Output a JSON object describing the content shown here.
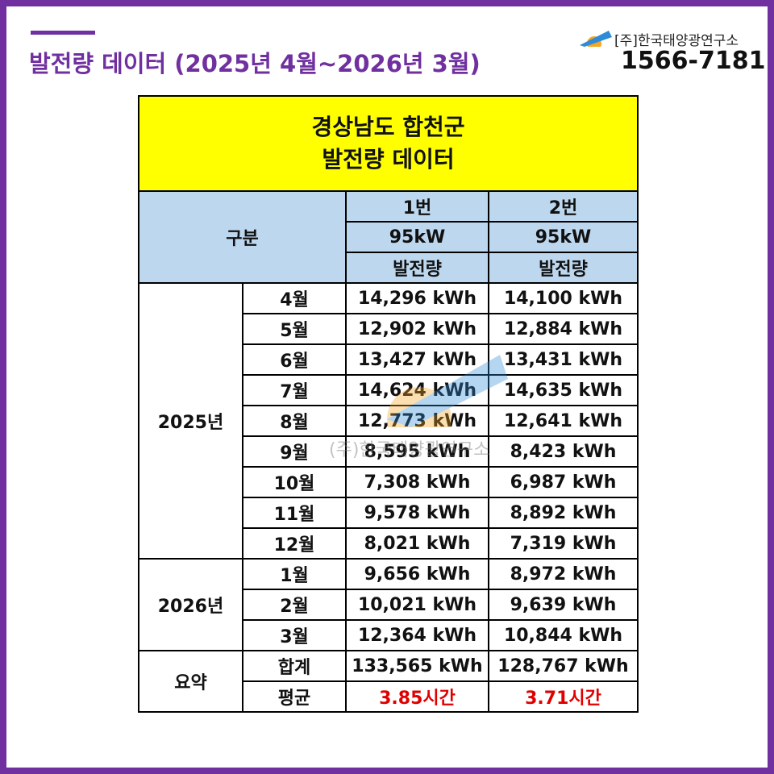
{
  "header": {
    "title": "발전량 데이터 (2025년 4월~2026년 3월)",
    "company": "[주]한국태양광연구소",
    "phone": "1566-7181"
  },
  "table": {
    "title_lines": [
      "경상남도 합천군",
      "발전량 데이터"
    ],
    "header": {
      "label": "구분",
      "columns": [
        [
          "1번",
          "95kW",
          "발전량"
        ],
        [
          "2번",
          "95kW",
          "발전량"
        ]
      ]
    },
    "groups": [
      {
        "label": "2025년",
        "rows": [
          [
            "4월",
            "14,296 kWh",
            "14,100 kWh"
          ],
          [
            "5월",
            "12,902 kWh",
            "12,884 kWh"
          ],
          [
            "6월",
            "13,427 kWh",
            "13,431 kWh"
          ],
          [
            "7월",
            "14,624 kWh",
            "14,635 kWh"
          ],
          [
            "8월",
            "12,773 kWh",
            "12,641 kWh"
          ],
          [
            "9월",
            "8,595 kWh",
            "8,423 kWh"
          ],
          [
            "10월",
            "7,308 kWh",
            "6,987 kWh"
          ],
          [
            "11월",
            "9,578 kWh",
            "8,892 kWh"
          ],
          [
            "12월",
            "8,021 kWh",
            "7,319 kWh"
          ]
        ]
      },
      {
        "label": "2026년",
        "rows": [
          [
            "1월",
            "9,656 kWh",
            "8,972 kWh"
          ],
          [
            "2월",
            "10,021 kWh",
            "9,639 kWh"
          ],
          [
            "3월",
            "12,364 kWh",
            "10,844 kWh"
          ]
        ]
      },
      {
        "label": "요약",
        "rows": [
          [
            "합계",
            "133,565 kWh",
            "128,767 kWh"
          ],
          [
            "평균",
            "3.85시간",
            "3.71시간"
          ]
        ]
      }
    ]
  },
  "watermark": "(주)한국태양광연구소"
}
